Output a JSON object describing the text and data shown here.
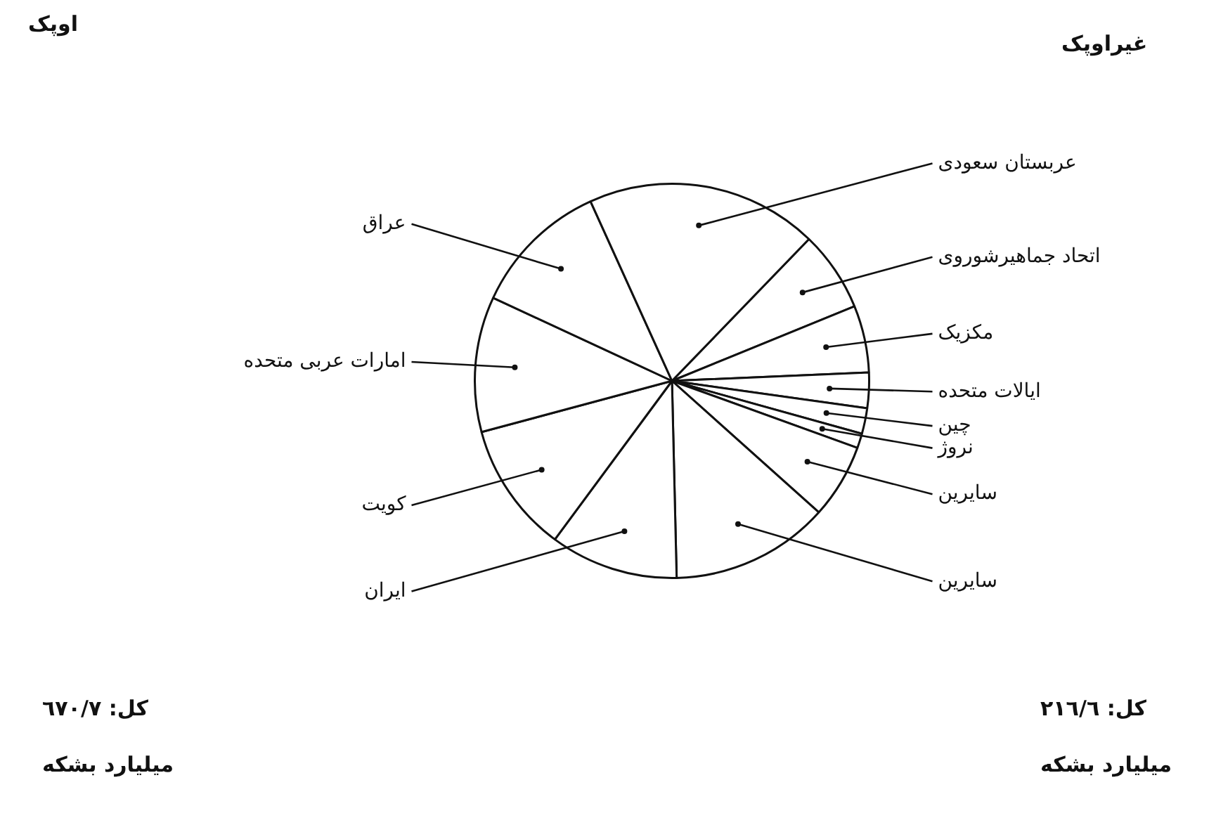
{
  "chart_data": {
    "type": "pie",
    "categories": [
      "اتحاد جماهیرشوروی",
      "مکزیک",
      "ایالات متحده",
      "چین",
      "نروژ",
      "سایرین",
      "سایرین",
      "ایران",
      "کویت",
      "امارات عربی متحده",
      "عراق",
      "عربستان سعودی"
    ],
    "values": [
      6.6,
      5.5,
      2.9,
      2.1,
      1.2,
      6.1,
      13.0,
      10.5,
      10.7,
      11.1,
      11.3,
      19.0
    ],
    "colors": [
      "#ffffff",
      "#ffffff",
      "#ffffff",
      "#ffffff",
      "#ffffff",
      "#ffffff",
      "#ffffff",
      "#ffffff",
      "#ffffff",
      "#ffffff",
      "#ffffff",
      "#ffffff"
    ],
    "legend": false,
    "annotations": [
      "اوپک",
      "غیراوپک",
      "کل: ٦٧٠/٧",
      "میلیارد بشکه",
      "کل: ٢١٦/٦",
      "میلیارد بشکه"
    ]
  }
}
